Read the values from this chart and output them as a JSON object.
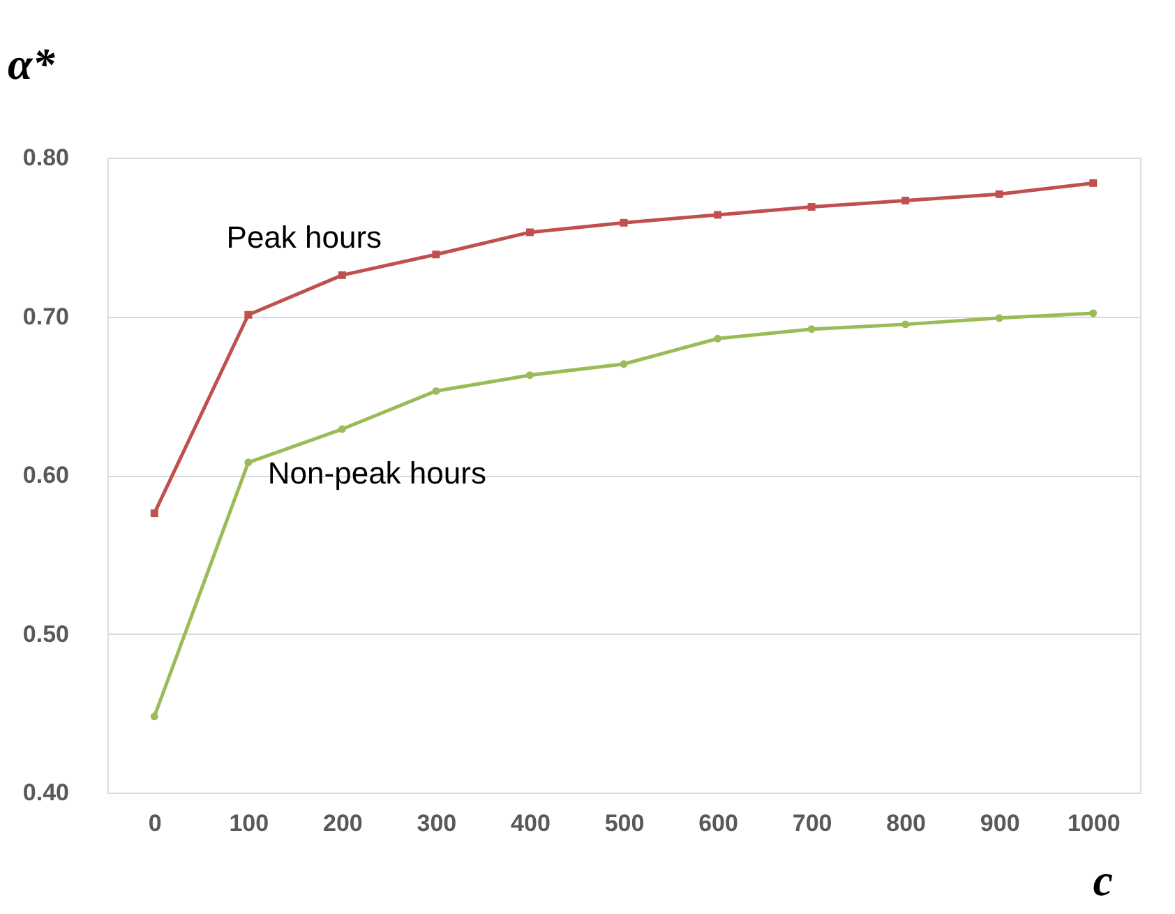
{
  "chart_data": {
    "type": "line",
    "xlabel": "c",
    "ylabel": "α*",
    "categories": [
      "0",
      "100",
      "200",
      "300",
      "400",
      "500",
      "600",
      "700",
      "800",
      "900",
      "1000"
    ],
    "series": [
      {
        "name": "Peak hours",
        "color": "#c0504d",
        "marker": "square",
        "values": [
          0.576,
          0.701,
          0.726,
          0.739,
          0.753,
          0.759,
          0.764,
          0.769,
          0.773,
          0.777,
          0.784
        ]
      },
      {
        "name": "Non-peak hours",
        "color": "#9bbb59",
        "marker": "circle",
        "values": [
          0.448,
          0.608,
          0.629,
          0.653,
          0.663,
          0.67,
          0.686,
          0.692,
          0.695,
          0.699,
          0.702
        ]
      }
    ],
    "ylim": [
      0.4,
      0.8
    ],
    "yticks": [
      {
        "value": 0.4,
        "label": "0.40"
      },
      {
        "value": 0.5,
        "label": "0.50"
      },
      {
        "value": 0.6,
        "label": "0.60"
      },
      {
        "value": 0.7,
        "label": "0.70"
      },
      {
        "value": 0.8,
        "label": "0.80"
      }
    ],
    "grid": "y",
    "line_style": "solid"
  }
}
